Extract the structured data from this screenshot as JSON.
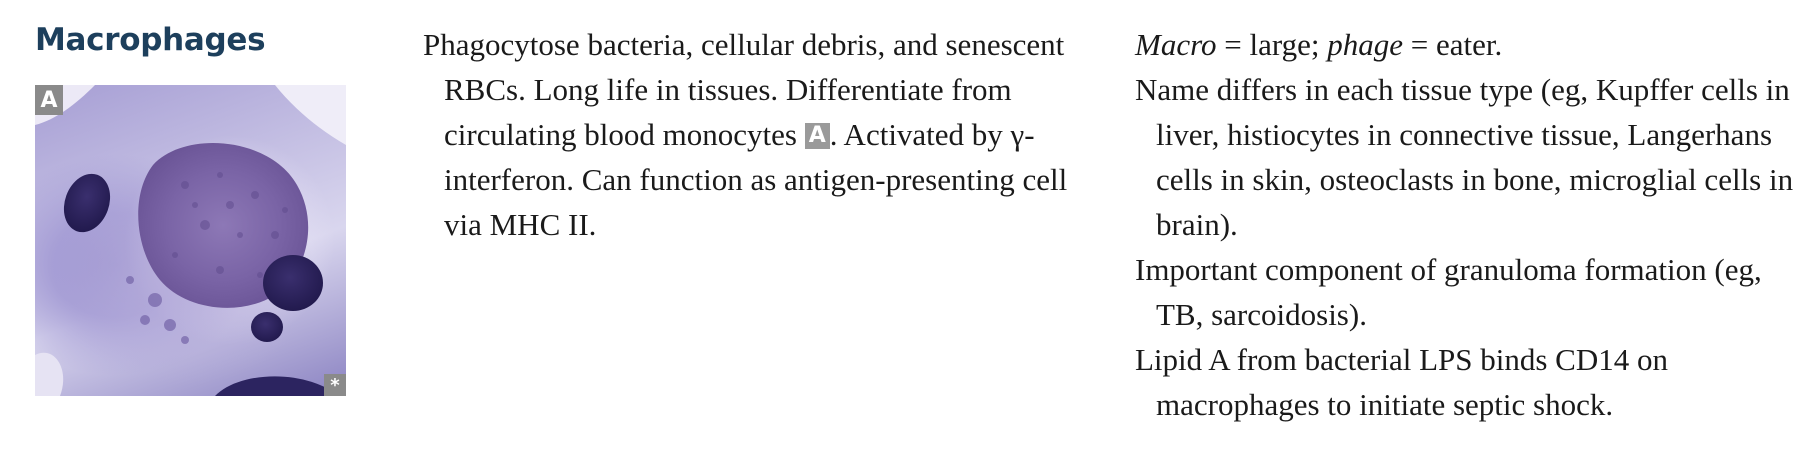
{
  "title": "Macrophages",
  "image": {
    "label": "A",
    "corner_mark": "*"
  },
  "middle": {
    "text_1": "Phagocytose bacteria, cellular debris, and senescent RBCs. Long life in tissues. Differentiate from circulating blood monocytes ",
    "ref": "A",
    "text_2": ". Activated by γ-interferon. Can function as antigen-presenting cell via MHC II."
  },
  "right": {
    "etym_macro": "Macro",
    "etym_mid": " = large; ",
    "etym_phage": "phage",
    "etym_end": " = eater.",
    "names": "Name differs in each tissue type (eg, Kupffer cells in liver, histiocytes in connective tissue, Langerhans cells in skin, osteoclasts in bone, microglial cells in brain).",
    "granuloma": "Important component of granuloma formation (eg, TB, sarcoidosis).",
    "lipid": "Lipid A from bacterial LPS binds CD14 on macrophages to initiate septic shock."
  }
}
